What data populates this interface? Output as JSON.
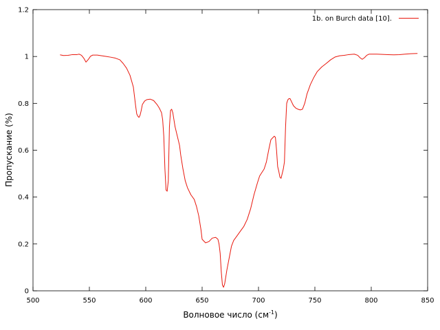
{
  "chart_data": {
    "type": "line",
    "xlabel": "Волновое число (см",
    "xlabel_sup": "-1",
    "xlabel_suffix": ")",
    "ylabel": "Пропускание (%)",
    "xlim": [
      500,
      850
    ],
    "ylim": [
      0,
      1.2
    ],
    "xticks": [
      500,
      550,
      600,
      650,
      700,
      750,
      800,
      850
    ],
    "yticks": [
      0,
      0.2,
      0.4,
      0.6,
      0.8,
      1,
      1.2
    ],
    "ytick_labels": [
      "0",
      "0.2",
      "0.4",
      "0.6",
      "0.8",
      "1",
      "1.2"
    ],
    "grid": false,
    "legend_position": "top-right",
    "series": [
      {
        "name": "1b. on Burch data [10].",
        "color": "#e8160b",
        "x": [
          524,
          527,
          531,
          535,
          539,
          541,
          543,
          545,
          547,
          549,
          551,
          553,
          557,
          561,
          565,
          569,
          573,
          577,
          580,
          583,
          586,
          589,
          591,
          592,
          593,
          594,
          595,
          596,
          597,
          599,
          601,
          604,
          607,
          610,
          612,
          614,
          615,
          616,
          617,
          618,
          619,
          620,
          621,
          622,
          623,
          624,
          625,
          626,
          628,
          630,
          631,
          633,
          635,
          637,
          640,
          643,
          645,
          647,
          649,
          650,
          651,
          653,
          656,
          659,
          662,
          664,
          665,
          666,
          667,
          668,
          669,
          670,
          671,
          672,
          674,
          676,
          678,
          681,
          684,
          687,
          690,
          693,
          696,
          699,
          701,
          703,
          705,
          707,
          709,
          711,
          713,
          714,
          715,
          716,
          717,
          718,
          719,
          720,
          721,
          722,
          723,
          724,
          725,
          726,
          727,
          728,
          729,
          731,
          733,
          735,
          737,
          739,
          741,
          743,
          746,
          749,
          752,
          756,
          760,
          764,
          768,
          772,
          776,
          780,
          785,
          788,
          790,
          792,
          794,
          796,
          798,
          800,
          805,
          810,
          815,
          820,
          825,
          830,
          835,
          841
        ],
        "y": [
          1.007,
          1.004,
          1.005,
          1.008,
          1.008,
          1.01,
          1.005,
          0.993,
          0.976,
          0.987,
          1.001,
          1.006,
          1.006,
          1.003,
          1.0,
          0.997,
          0.993,
          0.986,
          0.97,
          0.95,
          0.92,
          0.87,
          0.79,
          0.755,
          0.745,
          0.74,
          0.75,
          0.77,
          0.795,
          0.81,
          0.816,
          0.818,
          0.812,
          0.795,
          0.78,
          0.76,
          0.73,
          0.66,
          0.52,
          0.43,
          0.425,
          0.47,
          0.7,
          0.77,
          0.775,
          0.76,
          0.73,
          0.7,
          0.66,
          0.62,
          0.58,
          0.52,
          0.47,
          0.44,
          0.41,
          0.39,
          0.36,
          0.32,
          0.26,
          0.22,
          0.215,
          0.205,
          0.21,
          0.225,
          0.228,
          0.22,
          0.2,
          0.16,
          0.08,
          0.025,
          0.015,
          0.03,
          0.06,
          0.09,
          0.14,
          0.19,
          0.215,
          0.235,
          0.255,
          0.275,
          0.305,
          0.35,
          0.41,
          0.46,
          0.49,
          0.505,
          0.52,
          0.55,
          0.6,
          0.645,
          0.655,
          0.66,
          0.655,
          0.6,
          0.53,
          0.51,
          0.485,
          0.48,
          0.5,
          0.52,
          0.55,
          0.7,
          0.8,
          0.815,
          0.82,
          0.82,
          0.81,
          0.79,
          0.78,
          0.775,
          0.772,
          0.775,
          0.8,
          0.84,
          0.88,
          0.91,
          0.935,
          0.955,
          0.97,
          0.986,
          0.998,
          1.003,
          1.005,
          1.008,
          1.01,
          1.005,
          0.995,
          0.988,
          0.995,
          1.005,
          1.01,
          1.01,
          1.01,
          1.009,
          1.008,
          1.007,
          1.008,
          1.01,
          1.012,
          1.013
        ]
      }
    ]
  }
}
